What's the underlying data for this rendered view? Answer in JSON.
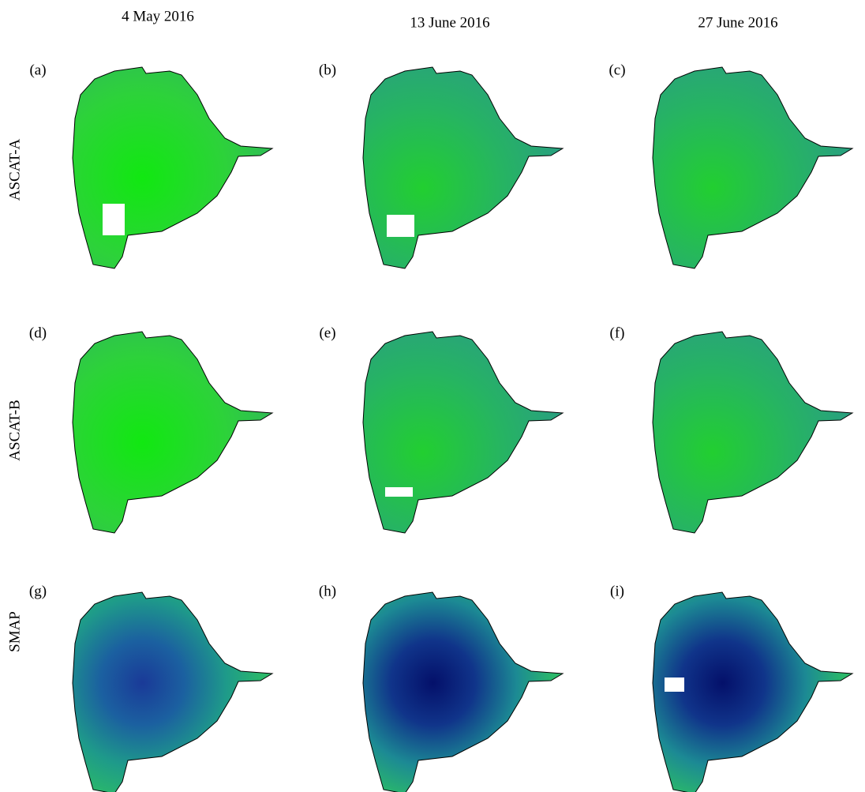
{
  "column_titles": [
    "4 May 2016",
    "13 June 2016",
    "27 June 2016"
  ],
  "row_labels": [
    "ASCAT-A",
    "ASCAT-B",
    "SMAP"
  ],
  "panel_labels": [
    "(a)",
    "(b)",
    "(c)",
    "(d)",
    "(e)",
    "(f)",
    "(g)",
    "(h)",
    "(i)"
  ]
}
